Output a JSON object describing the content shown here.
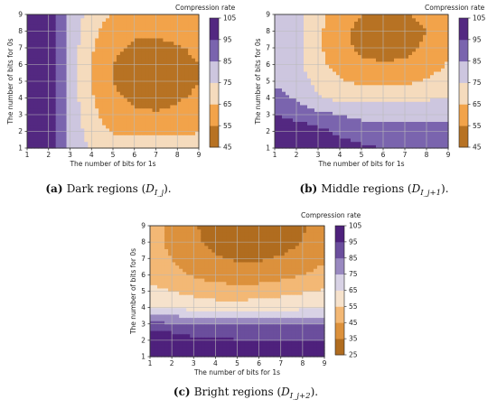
{
  "chart_data": [
    {
      "type": "heatmap",
      "subtype": "filled-contour",
      "xlabel": "The number of bits for 1s",
      "ylabel": "The number of bits for 0s",
      "xlim": [
        1,
        9
      ],
      "ylim": [
        1,
        9
      ],
      "x_ticks": [
        1,
        2,
        3,
        4,
        5,
        6,
        7,
        8,
        9
      ],
      "y_ticks": [
        1,
        2,
        3,
        4,
        5,
        6,
        7,
        8,
        9
      ],
      "grid": true,
      "colorbar_title": "Compression rate",
      "colorbar_ticks": [
        105,
        95,
        85,
        75,
        65,
        55,
        45
      ],
      "color_range": [
        45,
        105
      ],
      "caption": {
        "label": "(a)",
        "text": "Dark regions (",
        "math": "D",
        "sub": "I_j",
        "tail": ")."
      },
      "field": {
        "x": [
          1,
          2,
          3,
          4,
          5,
          6,
          7,
          8,
          9
        ],
        "y": [
          1,
          2,
          3,
          4,
          5,
          6,
          7,
          8,
          9
        ],
        "z": [
          [
            105,
            104,
            80,
            75,
            75,
            75,
            75,
            75,
            75
          ],
          [
            104,
            102,
            83,
            70,
            64,
            62,
            62,
            63,
            64
          ],
          [
            103,
            100,
            82,
            68,
            60,
            57,
            56,
            57,
            59
          ],
          [
            103,
            100,
            81,
            66,
            57,
            53,
            52,
            54,
            57
          ],
          [
            103,
            100,
            81,
            65,
            55,
            50,
            47,
            50,
            55
          ],
          [
            103,
            100,
            81,
            65,
            55,
            50,
            48,
            51,
            55
          ],
          [
            103,
            100,
            81,
            66,
            57,
            53,
            52,
            54,
            57
          ],
          [
            103,
            100,
            82,
            68,
            60,
            57,
            57,
            58,
            60
          ],
          [
            103,
            100,
            83,
            70,
            64,
            62,
            62,
            63,
            64
          ]
        ]
      }
    },
    {
      "type": "heatmap",
      "subtype": "filled-contour",
      "xlabel": "The number of bits for 1s",
      "ylabel": "The number of bits for 0s",
      "xlim": [
        1,
        9
      ],
      "ylim": [
        1,
        9
      ],
      "x_ticks": [
        1,
        2,
        3,
        4,
        5,
        6,
        7,
        8,
        9
      ],
      "y_ticks": [
        1,
        2,
        3,
        4,
        5,
        6,
        7,
        8,
        9
      ],
      "grid": true,
      "colorbar_title": "Compression rate",
      "colorbar_ticks": [
        105,
        95,
        85,
        75,
        65,
        55,
        45
      ],
      "color_range": [
        45,
        105
      ],
      "caption": {
        "label": "(b)",
        "text": "Middle regions (",
        "math": "D",
        "sub": "I_j+1",
        "tail": ")."
      },
      "field": {
        "x": [
          1,
          2,
          3,
          4,
          5,
          6,
          7,
          8,
          9
        ],
        "y": [
          1,
          2,
          3,
          4,
          5,
          6,
          7,
          8,
          9
        ],
        "z": [
          [
            105,
            105,
            103,
            100,
            97,
            95,
            95,
            95,
            95
          ],
          [
            103,
            101,
            98,
            93,
            90,
            88,
            88,
            88,
            88
          ],
          [
            95,
            92,
            88,
            85,
            83,
            82,
            82,
            82,
            82
          ],
          [
            88,
            84,
            76,
            73,
            72,
            72,
            73,
            74,
            75
          ],
          [
            84,
            80,
            72,
            66,
            63,
            62,
            63,
            66,
            70
          ],
          [
            84,
            78,
            68,
            61,
            57,
            56,
            57,
            60,
            66
          ],
          [
            84,
            78,
            67,
            58,
            53,
            51,
            52,
            57,
            64
          ],
          [
            84,
            78,
            67,
            58,
            52,
            49,
            50,
            55,
            63
          ],
          [
            84,
            78,
            68,
            60,
            55,
            53,
            54,
            58,
            65
          ]
        ]
      }
    },
    {
      "type": "heatmap",
      "subtype": "filled-contour",
      "xlabel": "The number of bits for 1s",
      "ylabel": "The number of bits for 0s",
      "xlim": [
        1,
        9
      ],
      "ylim": [
        1,
        9
      ],
      "x_ticks": [
        1,
        2,
        3,
        4,
        5,
        6,
        7,
        8,
        9
      ],
      "y_ticks": [
        1,
        2,
        3,
        4,
        5,
        6,
        7,
        8,
        9
      ],
      "grid": true,
      "colorbar_title": "Compression rate",
      "colorbar_ticks": [
        105,
        95,
        85,
        75,
        65,
        55,
        45,
        35,
        25
      ],
      "color_range": [
        25,
        105
      ],
      "caption": {
        "label": "(c)",
        "text": "Bright regions (",
        "math": "D",
        "sub": "I_j+2",
        "tail": ")."
      },
      "field": {
        "x": [
          1,
          2,
          3,
          4,
          5,
          6,
          7,
          8,
          9
        ],
        "y": [
          1,
          2,
          3,
          4,
          5,
          6,
          7,
          8,
          9
        ],
        "z": [
          [
            105,
            105,
            100,
            100,
            100,
            100,
            100,
            100,
            100
          ],
          [
            104,
            103,
            98,
            97,
            96,
            96,
            96,
            96,
            96
          ],
          [
            88,
            87,
            86,
            85,
            84,
            84,
            84,
            84,
            84
          ],
          [
            65,
            64,
            62,
            60,
            60,
            61,
            62,
            63,
            64
          ],
          [
            58,
            55,
            52,
            50,
            49,
            50,
            52,
            54,
            56
          ],
          [
            52,
            48,
            44,
            41,
            40,
            40,
            42,
            45,
            48
          ],
          [
            50,
            45,
            40,
            36,
            34,
            34,
            36,
            40,
            44
          ],
          [
            48,
            43,
            37,
            32,
            29,
            29,
            31,
            35,
            41
          ],
          [
            48,
            43,
            36,
            31,
            27,
            27,
            29,
            34,
            40
          ]
        ]
      }
    }
  ],
  "palette": {
    "purple_dark": "#3f0a6b",
    "purple_mid": "#7a64ae",
    "white": "#f7f7f7",
    "orange_mid": "#f2a34a",
    "orange_dark": "#9a5a10"
  }
}
